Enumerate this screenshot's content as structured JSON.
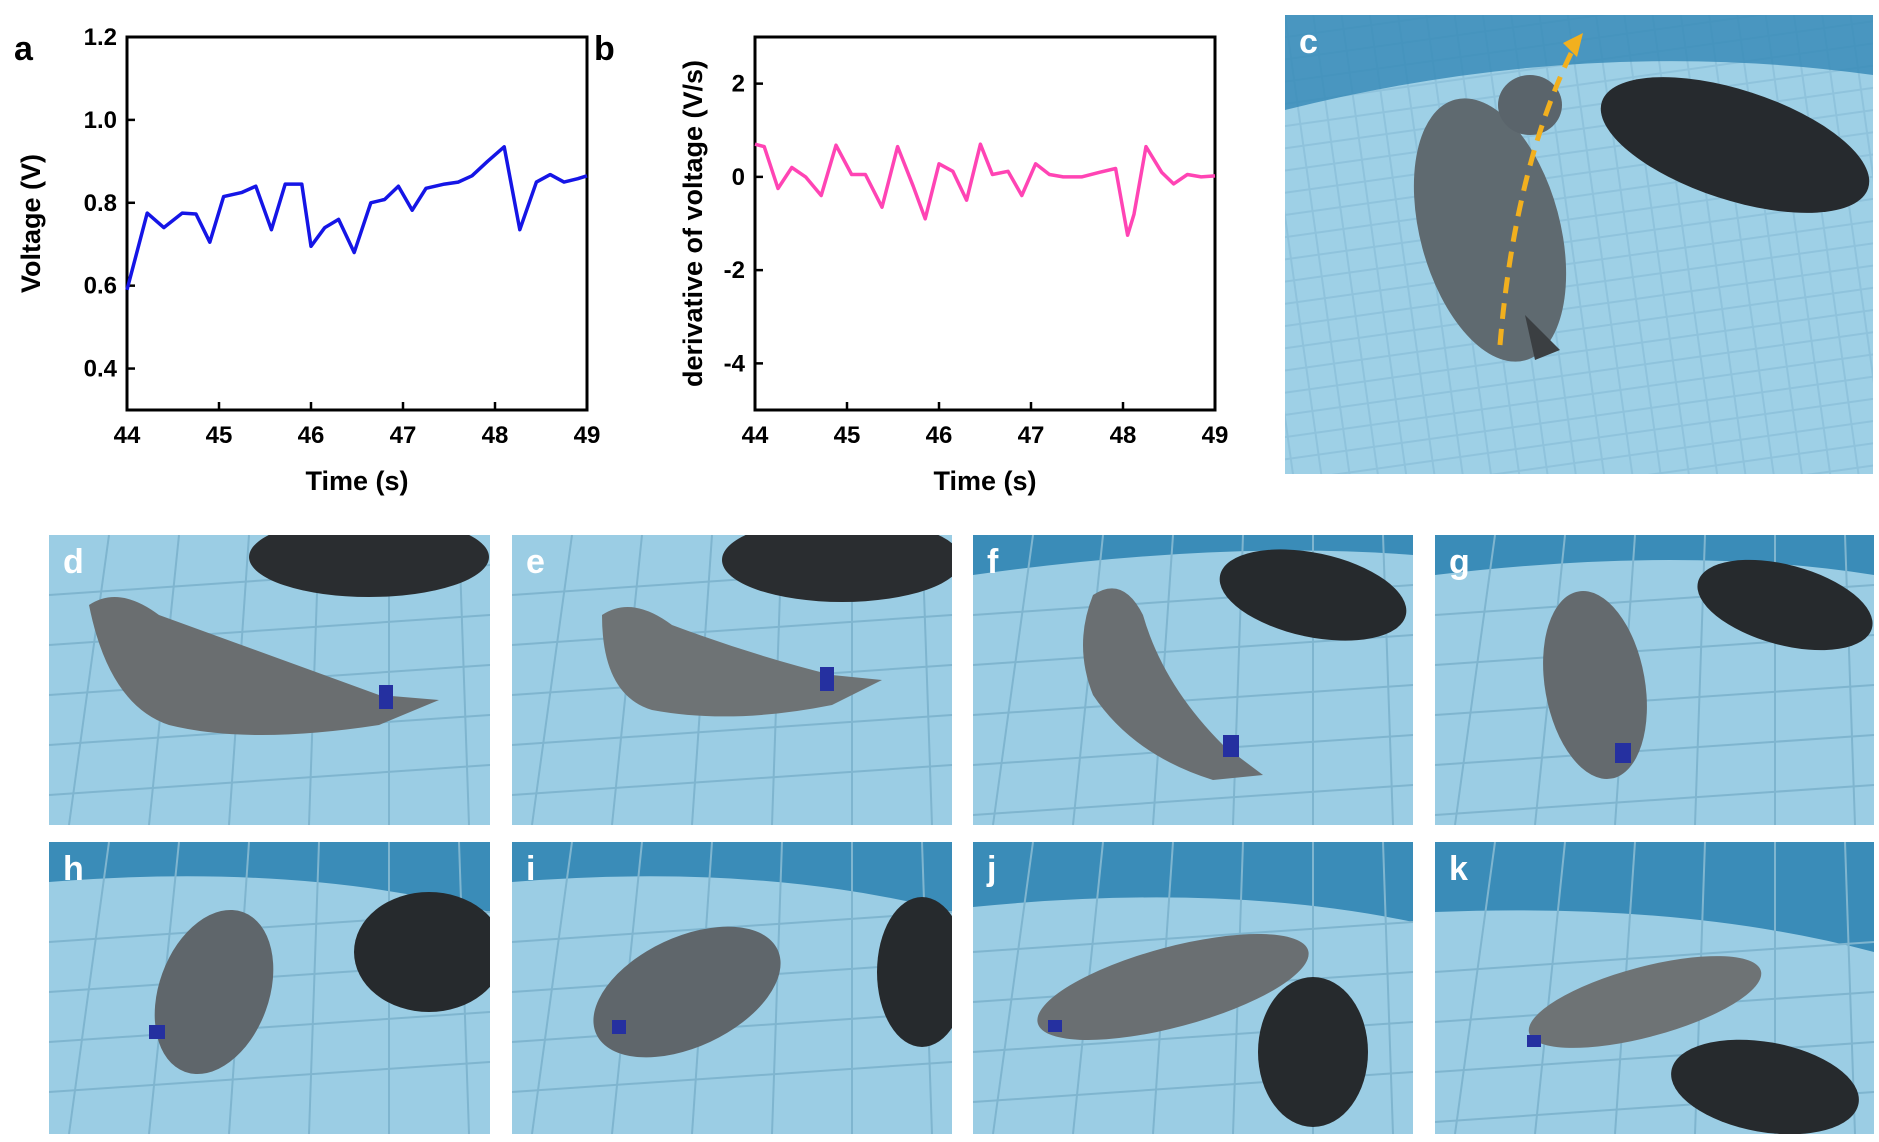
{
  "figure": {
    "panel_letters": {
      "a": "a",
      "b": "b",
      "c": "c",
      "d": "d",
      "e": "e",
      "f": "f",
      "g": "g",
      "h": "h",
      "i": "i",
      "j": "j",
      "k": "k"
    }
  },
  "chart_data": [
    {
      "id": "a",
      "type": "line",
      "title": "",
      "xlabel": "Time (s)",
      "ylabel": "Voltage (V)",
      "xlim": [
        44,
        49
      ],
      "ylim": [
        0.3,
        1.2
      ],
      "xticks": [
        44,
        45,
        46,
        47,
        48,
        49
      ],
      "xtick_labels": [
        "44",
        "45",
        "46",
        "47",
        "48",
        "49"
      ],
      "yticks": [
        0.4,
        0.6,
        0.8,
        1.0,
        1.2
      ],
      "ytick_labels": [
        "0.4",
        "0.6",
        "0.8",
        "1.0",
        "1.2"
      ],
      "color": "#1515e6",
      "series": [
        {
          "name": "Voltage",
          "x": [
            44.0,
            44.22,
            44.4,
            44.6,
            44.75,
            44.9,
            45.05,
            45.25,
            45.4,
            45.57,
            45.72,
            45.9,
            46.0,
            46.15,
            46.3,
            46.47,
            46.65,
            46.8,
            46.95,
            47.1,
            47.25,
            47.45,
            47.6,
            47.75,
            47.92,
            48.1,
            48.27,
            48.45,
            48.6,
            48.75,
            48.9,
            49.0
          ],
          "y": [
            0.59,
            0.775,
            0.74,
            0.775,
            0.773,
            0.705,
            0.815,
            0.825,
            0.84,
            0.735,
            0.845,
            0.845,
            0.695,
            0.74,
            0.76,
            0.68,
            0.8,
            0.808,
            0.84,
            0.782,
            0.835,
            0.845,
            0.85,
            0.865,
            0.9,
            0.935,
            0.735,
            0.85,
            0.868,
            0.85,
            0.858,
            0.865
          ]
        }
      ]
    },
    {
      "id": "b",
      "type": "line",
      "title": "",
      "xlabel": "Time (s)",
      "ylabel": "derivative of voltage (V/s)",
      "xlim": [
        44,
        49
      ],
      "ylim": [
        -5,
        3
      ],
      "xticks": [
        44,
        45,
        46,
        47,
        48,
        49
      ],
      "xtick_labels": [
        "44",
        "45",
        "46",
        "47",
        "48",
        "49"
      ],
      "yticks": [
        -4,
        -2,
        0,
        2
      ],
      "ytick_labels": [
        "-4",
        "-2",
        "0",
        "2"
      ],
      "color": "#ff44b4",
      "series": [
        {
          "name": "derivative of voltage",
          "x": [
            44.0,
            44.1,
            44.25,
            44.4,
            44.55,
            44.72,
            44.88,
            45.05,
            45.2,
            45.38,
            45.55,
            45.72,
            45.85,
            46.0,
            46.15,
            46.3,
            46.45,
            46.58,
            46.75,
            46.9,
            47.05,
            47.2,
            47.35,
            47.55,
            47.75,
            47.92,
            48.05,
            48.12,
            48.25,
            48.42,
            48.55,
            48.7,
            48.85,
            49.0
          ],
          "y": [
            0.7,
            0.65,
            -0.25,
            0.2,
            0.0,
            -0.4,
            0.68,
            0.05,
            0.05,
            -0.65,
            0.65,
            -0.2,
            -0.9,
            0.28,
            0.12,
            -0.5,
            0.7,
            0.05,
            0.12,
            -0.4,
            0.28,
            0.05,
            0.0,
            0.0,
            0.1,
            0.18,
            -1.25,
            -0.8,
            0.65,
            0.1,
            -0.15,
            0.05,
            0.0,
            0.02
          ]
        }
      ]
    }
  ]
}
